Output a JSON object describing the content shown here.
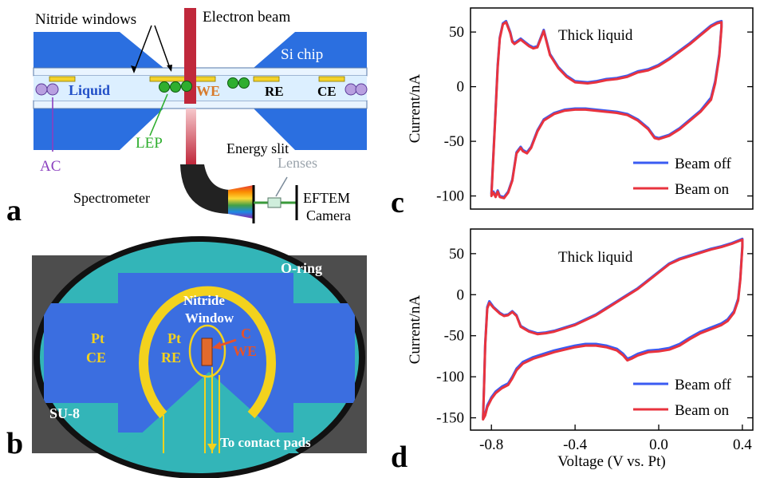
{
  "colors": {
    "chip_blue": "#2b6fe0",
    "liquid": "#dcefff",
    "beam": "#c0283b",
    "electrode_yellow": "#f4d22a",
    "particle_green": "#2fae2f",
    "we_text": "#d87a2a",
    "ac_purple": "#8a3fbf",
    "panel_b_bg": "#4d4d4d",
    "panel_b_teal": "#33b5b8",
    "panel_b_blue": "#3b6ee0",
    "panel_b_yellow": "#f3d21d",
    "series_off": "#3a5bf2",
    "series_on": "#e8333e"
  },
  "panels": {
    "a": {
      "letter": "a",
      "labels": {
        "nitride_windows": "Nitride windows",
        "electron_beam": "Electron beam",
        "si_chip": "Si chip",
        "liquid": "Liquid",
        "we": "WE",
        "re": "RE",
        "ce": "CE",
        "lep": "LEP",
        "ac": "AC",
        "energy_slit": "Energy slit",
        "lenses": "Lenses",
        "spectrometer": "Spectrometer",
        "eftem": "EFTEM",
        "camera": "Camera"
      }
    },
    "b": {
      "letter": "b",
      "labels": {
        "o_ring": "O-ring",
        "nitride": "Nitride",
        "window": "Window",
        "pt_ce_1": "Pt",
        "pt_ce_2": "CE",
        "pt_re_1": "Pt",
        "pt_re_2": "RE",
        "c": "C",
        "we": "WE",
        "su8": "SU-8",
        "contact": "To contact pads"
      }
    },
    "c": {
      "letter": "c"
    },
    "d": {
      "letter": "d"
    }
  },
  "chart_data": [
    {
      "type": "line",
      "panel": "c",
      "title": "Thick liquid",
      "xlabel": "",
      "ylabel": "Current/nA",
      "xlim": [
        -0.9,
        0.45
      ],
      "ylim": [
        -112,
        72
      ],
      "yticks": [
        -100,
        -50,
        0,
        50
      ],
      "xticks": [],
      "legend_position": "bottom-right",
      "series": [
        {
          "name": "Beam off",
          "color": "#3a5bf2",
          "x": [
            -0.8,
            -0.79,
            -0.78,
            -0.77,
            -0.76,
            -0.745,
            -0.73,
            -0.71,
            -0.7,
            -0.69,
            -0.66,
            -0.64,
            -0.62,
            -0.6,
            -0.58,
            -0.55,
            -0.52,
            -0.48,
            -0.44,
            -0.4,
            -0.34,
            -0.3,
            -0.25,
            -0.2,
            -0.15,
            -0.1,
            -0.05,
            0.0,
            0.05,
            0.1,
            0.15,
            0.2,
            0.25,
            0.28,
            0.3,
            0.3,
            0.29,
            0.27,
            0.25,
            0.2,
            0.15,
            0.1,
            0.05,
            0.0,
            -0.02,
            -0.05,
            -0.1,
            -0.15,
            -0.2,
            -0.25,
            -0.3,
            -0.35,
            -0.4,
            -0.45,
            -0.5,
            -0.55,
            -0.58,
            -0.61,
            -0.63,
            -0.65,
            -0.66,
            -0.68,
            -0.7,
            -0.72,
            -0.74,
            -0.76,
            -0.77,
            -0.78,
            -0.79,
            -0.8
          ],
          "y": [
            -98,
            -60,
            -20,
            20,
            45,
            58,
            60,
            50,
            42,
            40,
            44,
            41,
            38,
            36,
            37,
            52,
            30,
            18,
            10,
            5,
            4,
            5,
            7,
            8,
            10,
            14,
            16,
            20,
            26,
            33,
            40,
            48,
            56,
            59,
            60,
            55,
            30,
            5,
            -10,
            -22,
            -30,
            -38,
            -44,
            -47,
            -46,
            -38,
            -30,
            -25,
            -23,
            -22,
            -21,
            -20,
            -20,
            -21,
            -24,
            -30,
            -40,
            -55,
            -60,
            -58,
            -55,
            -60,
            -85,
            -96,
            -101,
            -100,
            -95,
            -100,
            -96,
            -98
          ]
        },
        {
          "name": "Beam on",
          "color": "#e8333e",
          "x": [
            -0.8,
            -0.79,
            -0.78,
            -0.77,
            -0.76,
            -0.745,
            -0.73,
            -0.71,
            -0.7,
            -0.69,
            -0.66,
            -0.64,
            -0.62,
            -0.6,
            -0.58,
            -0.55,
            -0.52,
            -0.48,
            -0.44,
            -0.4,
            -0.34,
            -0.3,
            -0.25,
            -0.2,
            -0.15,
            -0.1,
            -0.05,
            0.0,
            0.05,
            0.1,
            0.15,
            0.2,
            0.25,
            0.28,
            0.3,
            0.3,
            0.29,
            0.27,
            0.25,
            0.2,
            0.15,
            0.1,
            0.05,
            0.0,
            -0.02,
            -0.05,
            -0.1,
            -0.15,
            -0.2,
            -0.25,
            -0.3,
            -0.35,
            -0.4,
            -0.45,
            -0.5,
            -0.55,
            -0.58,
            -0.61,
            -0.63,
            -0.65,
            -0.66,
            -0.68,
            -0.7,
            -0.72,
            -0.74,
            -0.76,
            -0.77,
            -0.78,
            -0.79,
            -0.8
          ],
          "y": [
            -100,
            -62,
            -22,
            18,
            44,
            57,
            59,
            49,
            41,
            39,
            43,
            40,
            37,
            35,
            36,
            51,
            29,
            17,
            9,
            4,
            3,
            4,
            6,
            7,
            9,
            13,
            15,
            19,
            25,
            32,
            39,
            47,
            55,
            58,
            59,
            54,
            28,
            3,
            -12,
            -23,
            -31,
            -39,
            -45,
            -48,
            -47,
            -39,
            -31,
            -26,
            -24,
            -23,
            -22,
            -21,
            -21,
            -22,
            -25,
            -31,
            -41,
            -56,
            -61,
            -59,
            -56,
            -61,
            -86,
            -97,
            -102,
            -101,
            -96,
            -101,
            -97,
            -100
          ]
        }
      ]
    },
    {
      "type": "line",
      "panel": "d",
      "title": "Thick liquid",
      "xlabel": "Voltage (V vs. Pt)",
      "ylabel": "Current/nA",
      "xlim": [
        -0.9,
        0.45
      ],
      "ylim": [
        -165,
        80
      ],
      "yticks": [
        -150,
        -100,
        -50,
        0,
        50
      ],
      "xticks": [
        -0.8,
        -0.4,
        0.0,
        0.4
      ],
      "legend_position": "bottom-right",
      "series": [
        {
          "name": "Beam off",
          "color": "#3a5bf2",
          "x": [
            -0.84,
            -0.835,
            -0.83,
            -0.82,
            -0.81,
            -0.79,
            -0.76,
            -0.74,
            -0.72,
            -0.7,
            -0.68,
            -0.66,
            -0.62,
            -0.58,
            -0.54,
            -0.5,
            -0.45,
            -0.4,
            -0.35,
            -0.3,
            -0.25,
            -0.2,
            -0.15,
            -0.1,
            -0.05,
            0.0,
            0.05,
            0.1,
            0.15,
            0.2,
            0.25,
            0.3,
            0.35,
            0.39,
            0.4,
            0.4,
            0.39,
            0.38,
            0.36,
            0.33,
            0.3,
            0.25,
            0.2,
            0.15,
            0.1,
            0.05,
            0.0,
            -0.05,
            -0.1,
            -0.13,
            -0.15,
            -0.17,
            -0.2,
            -0.25,
            -0.3,
            -0.35,
            -0.4,
            -0.45,
            -0.5,
            -0.55,
            -0.6,
            -0.65,
            -0.68,
            -0.7,
            -0.72,
            -0.75,
            -0.78,
            -0.8,
            -0.82,
            -0.83,
            -0.84
          ],
          "y": [
            -150,
            -110,
            -60,
            -15,
            -8,
            -15,
            -22,
            -25,
            -24,
            -20,
            -25,
            -38,
            -44,
            -47,
            -46,
            -44,
            -40,
            -36,
            -30,
            -24,
            -16,
            -8,
            0,
            8,
            18,
            28,
            38,
            44,
            48,
            52,
            56,
            59,
            63,
            67,
            68,
            60,
            20,
            -5,
            -20,
            -30,
            -35,
            -40,
            -45,
            -52,
            -60,
            -65,
            -67,
            -68,
            -72,
            -76,
            -78,
            -72,
            -66,
            -62,
            -60,
            -60,
            -62,
            -65,
            -68,
            -72,
            -76,
            -82,
            -90,
            -100,
            -108,
            -112,
            -118,
            -125,
            -135,
            -145,
            -150
          ]
        },
        {
          "name": "Beam on",
          "color": "#e8333e",
          "x": [
            -0.84,
            -0.835,
            -0.83,
            -0.82,
            -0.81,
            -0.79,
            -0.76,
            -0.74,
            -0.72,
            -0.7,
            -0.68,
            -0.66,
            -0.62,
            -0.58,
            -0.54,
            -0.5,
            -0.45,
            -0.4,
            -0.35,
            -0.3,
            -0.25,
            -0.2,
            -0.15,
            -0.1,
            -0.05,
            0.0,
            0.05,
            0.1,
            0.15,
            0.2,
            0.25,
            0.3,
            0.35,
            0.39,
            0.4,
            0.4,
            0.39,
            0.38,
            0.36,
            0.33,
            0.3,
            0.25,
            0.2,
            0.15,
            0.1,
            0.05,
            0.0,
            -0.05,
            -0.1,
            -0.13,
            -0.15,
            -0.17,
            -0.2,
            -0.25,
            -0.3,
            -0.35,
            -0.4,
            -0.45,
            -0.5,
            -0.55,
            -0.6,
            -0.65,
            -0.68,
            -0.7,
            -0.72,
            -0.75,
            -0.78,
            -0.8,
            -0.82,
            -0.83,
            -0.84
          ],
          "y": [
            -152,
            -112,
            -62,
            -17,
            -10,
            -16,
            -23,
            -26,
            -25,
            -21,
            -26,
            -39,
            -45,
            -48,
            -47,
            -45,
            -41,
            -37,
            -31,
            -25,
            -17,
            -9,
            -1,
            7,
            17,
            27,
            37,
            43,
            47,
            51,
            55,
            58,
            62,
            66,
            67,
            58,
            18,
            -7,
            -22,
            -32,
            -37,
            -42,
            -47,
            -54,
            -62,
            -67,
            -69,
            -70,
            -74,
            -78,
            -80,
            -74,
            -68,
            -64,
            -62,
            -62,
            -64,
            -67,
            -70,
            -74,
            -78,
            -84,
            -92,
            -102,
            -110,
            -114,
            -120,
            -127,
            -137,
            -147,
            -152
          ]
        }
      ]
    }
  ]
}
